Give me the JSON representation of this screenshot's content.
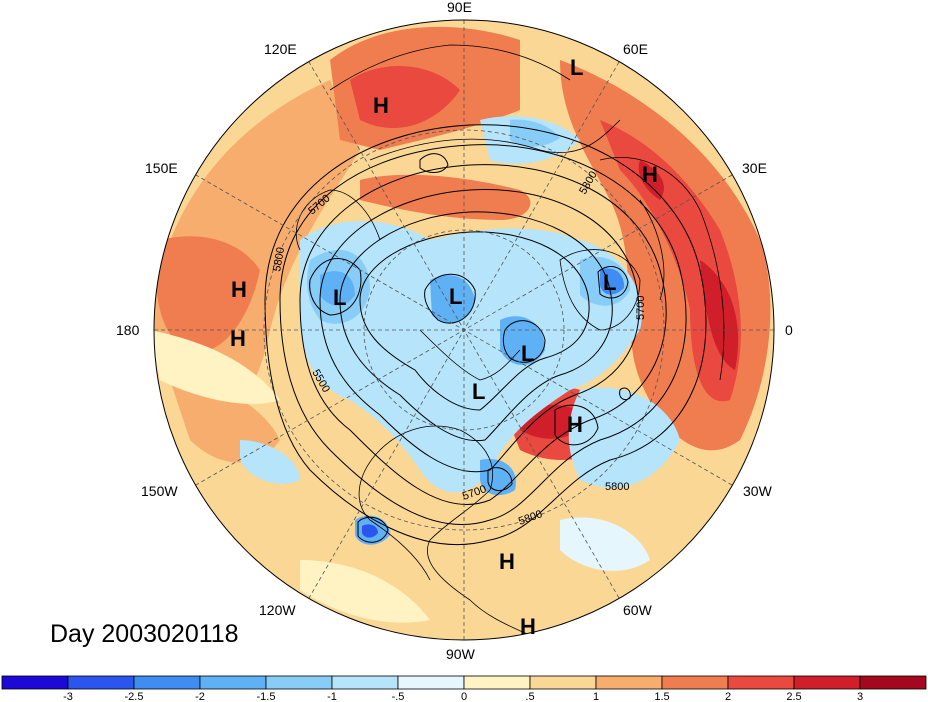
{
  "map": {
    "projection": "north-polar-stereographic",
    "longitude_labels": [
      "90E",
      "60E",
      "30E",
      "0",
      "30W",
      "60W",
      "90W",
      "120W",
      "150W",
      "180",
      "150E",
      "120E"
    ],
    "pressure_systems": [
      {
        "type": "H",
        "region": "east Siberia"
      },
      {
        "type": "L",
        "region": "north-central Russia"
      },
      {
        "type": "H",
        "region": "eastern Europe"
      },
      {
        "type": "L",
        "region": "northern Scandinavia"
      },
      {
        "type": "H",
        "region": "north Pacific"
      },
      {
        "type": "H",
        "region": "central Pacific"
      },
      {
        "type": "L",
        "region": "Bering Sea"
      },
      {
        "type": "L",
        "region": "east Siberian Arctic"
      },
      {
        "type": "L",
        "region": "Greenland"
      },
      {
        "type": "L",
        "region": "Hudson Bay"
      },
      {
        "type": "H",
        "region": "central Atlantic"
      },
      {
        "type": "H",
        "region": "Caribbean"
      },
      {
        "type": "H",
        "region": "tropical Pacific"
      }
    ],
    "contour_labels": [
      "5700",
      "5800",
      "5800",
      "5700",
      "5500",
      "5800",
      "5700",
      "5800"
    ],
    "day_label": "Day 2003020118"
  },
  "colorbar": {
    "tick_labels": [
      "-3",
      "-2.5",
      "-2",
      "-1.5",
      "-1",
      "-.5",
      "0",
      ".5",
      "1",
      "1.5",
      "2",
      "2.5",
      "3"
    ],
    "colors": [
      "#1d08d8",
      "#2a55ee",
      "#3f8cf2",
      "#5fb1f6",
      "#87cdf8",
      "#b5e4fb",
      "#e6f6fd",
      "#fff3c4",
      "#fbd796",
      "#f6ad6e",
      "#f07d50",
      "#e9493f",
      "#d01e2a",
      "#a5071f"
    ]
  },
  "fields": {
    "shading": "500 hPa height anomaly",
    "contours": "500 hPa geopotential height"
  }
}
